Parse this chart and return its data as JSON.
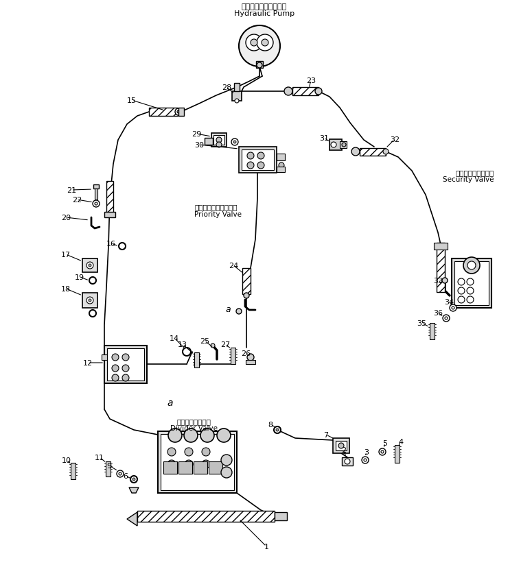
{
  "bg_color": "#ffffff",
  "title_jp": "ハイドロリックポンプ",
  "title_en": "Hydraulic Pump",
  "priority_valve_jp": "プライオリティバルブ",
  "priority_valve_en": "Priority Valve",
  "security_valve_jp": "セキュリティバルブ",
  "security_valve_en": "Security Valve",
  "divider_valve_jp": "ディバイダバルブ",
  "divider_valve_en": "Divider Valve"
}
